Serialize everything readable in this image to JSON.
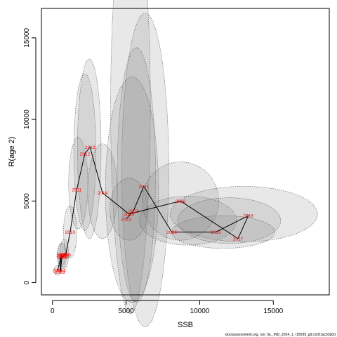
{
  "chart_data": {
    "type": "scatter",
    "title": "",
    "xlabel": "SSB",
    "ylabel": "R(age 2)",
    "xlim": [
      -750,
      18800
    ],
    "ylim": [
      -750,
      16800
    ],
    "xticks": [
      0,
      5000,
      10000,
      15000
    ],
    "yticks": [
      0,
      5000,
      10000,
      15000
    ],
    "grid": false,
    "line_color": "#000000",
    "label_color": "#ff0000",
    "ellipse_fill": "#808080",
    "points": [
      {
        "year": "2001",
        "ssb": 350,
        "r": 750
      },
      {
        "year": "2002",
        "ssb": 600,
        "r": 1700
      },
      {
        "year": "2003",
        "ssb": 500,
        "r": 650
      },
      {
        "year": "2004",
        "ssb": 550,
        "r": 750
      },
      {
        "year": "2005",
        "ssb": 650,
        "r": 1650
      },
      {
        "year": "2006",
        "ssb": 700,
        "r": 1550
      },
      {
        "year": "2007",
        "ssb": 750,
        "r": 1600
      },
      {
        "year": "2008",
        "ssb": 800,
        "r": 1750
      },
      {
        "year": "2009",
        "ssb": 900,
        "r": 1700
      },
      {
        "year": "2010",
        "ssb": 1200,
        "r": 3100
      },
      {
        "year": "2011",
        "ssb": 1650,
        "r": 5700
      },
      {
        "year": "2012",
        "ssb": 2200,
        "r": 7900
      },
      {
        "year": "2013",
        "ssb": 2550,
        "r": 8300
      },
      {
        "year": "2014",
        "ssb": 3400,
        "r": 5500
      },
      {
        "year": "2015",
        "ssb": 5200,
        "r": 4200
      },
      {
        "year": "2016",
        "ssb": 8700,
        "r": 5000
      },
      {
        "year": "2017",
        "ssb": 12600,
        "r": 2700
      },
      {
        "year": "2018",
        "ssb": 13300,
        "r": 4100
      },
      {
        "year": "2019",
        "ssb": 11100,
        "r": 3100
      },
      {
        "year": "2020",
        "ssb": 8100,
        "r": 3100
      },
      {
        "year": "2021",
        "ssb": 6200,
        "r": 5900
      },
      {
        "year": "2022",
        "ssb": 5500,
        "r": 4400
      },
      {
        "year": "2023",
        "ssb": 5000,
        "r": 3900
      }
    ],
    "ellipses": [
      {
        "year": "2001",
        "cx": 350,
        "cy": 750,
        "rx": 250,
        "ry": 300
      },
      {
        "year": "2002",
        "cx": 600,
        "cy": 1700,
        "rx": 280,
        "ry": 700
      },
      {
        "year": "2005",
        "cx": 650,
        "cy": 1650,
        "rx": 300,
        "ry": 800
      },
      {
        "year": "2008",
        "cx": 800,
        "cy": 1750,
        "rx": 300,
        "ry": 900
      },
      {
        "year": "2010",
        "cx": 1200,
        "cy": 3100,
        "rx": 450,
        "ry": 1600
      },
      {
        "year": "2011",
        "cx": 1750,
        "cy": 6100,
        "rx": 650,
        "ry": 2800
      },
      {
        "year": "2012",
        "cx": 2200,
        "cy": 8000,
        "rx": 750,
        "ry": 4800
      },
      {
        "year": "2013",
        "cx": 2500,
        "cy": 8200,
        "rx": 800,
        "ry": 5500
      },
      {
        "year": "2014",
        "cx": 3400,
        "cy": 5600,
        "rx": 1000,
        "ry": 2900
      },
      {
        "year": "2015",
        "cx": 5300,
        "cy": 10800,
        "rx": 1350,
        "ry": 12700
      },
      {
        "year": "2021",
        "cx": 6300,
        "cy": 6900,
        "rx": 1600,
        "ry": 9600
      },
      {
        "year": "2022",
        "cx": 5700,
        "cy": 6600,
        "rx": 1300,
        "ry": 7800
      },
      {
        "year": "2023",
        "cx": 5400,
        "cy": 5700,
        "rx": 1800,
        "ry": 6900
      },
      {
        "year": "2024",
        "cx": 5200,
        "cy": 4500,
        "rx": 1300,
        "ry": 1900
      },
      {
        "year": "2016",
        "cx": 8700,
        "cy": 5000,
        "rx": 2600,
        "ry": 2400
      },
      {
        "year": "2020",
        "cx": 9200,
        "cy": 3800,
        "rx": 3300,
        "ry": 1500
      },
      {
        "year": "2018",
        "cx": 13000,
        "cy": 4200,
        "rx": 5000,
        "ry": 1700
      },
      {
        "year": "2019",
        "cx": 12000,
        "cy": 3800,
        "rx": 3500,
        "ry": 1400
      },
      {
        "year": "2017",
        "cx": 11600,
        "cy": 3100,
        "rx": 3500,
        "ry": 1000
      }
    ],
    "label_offsets_note": ""
  },
  "footer": "stockassessment.org, run: GL_IND_2024_1, r18599_git:c9c81ac53a0d"
}
